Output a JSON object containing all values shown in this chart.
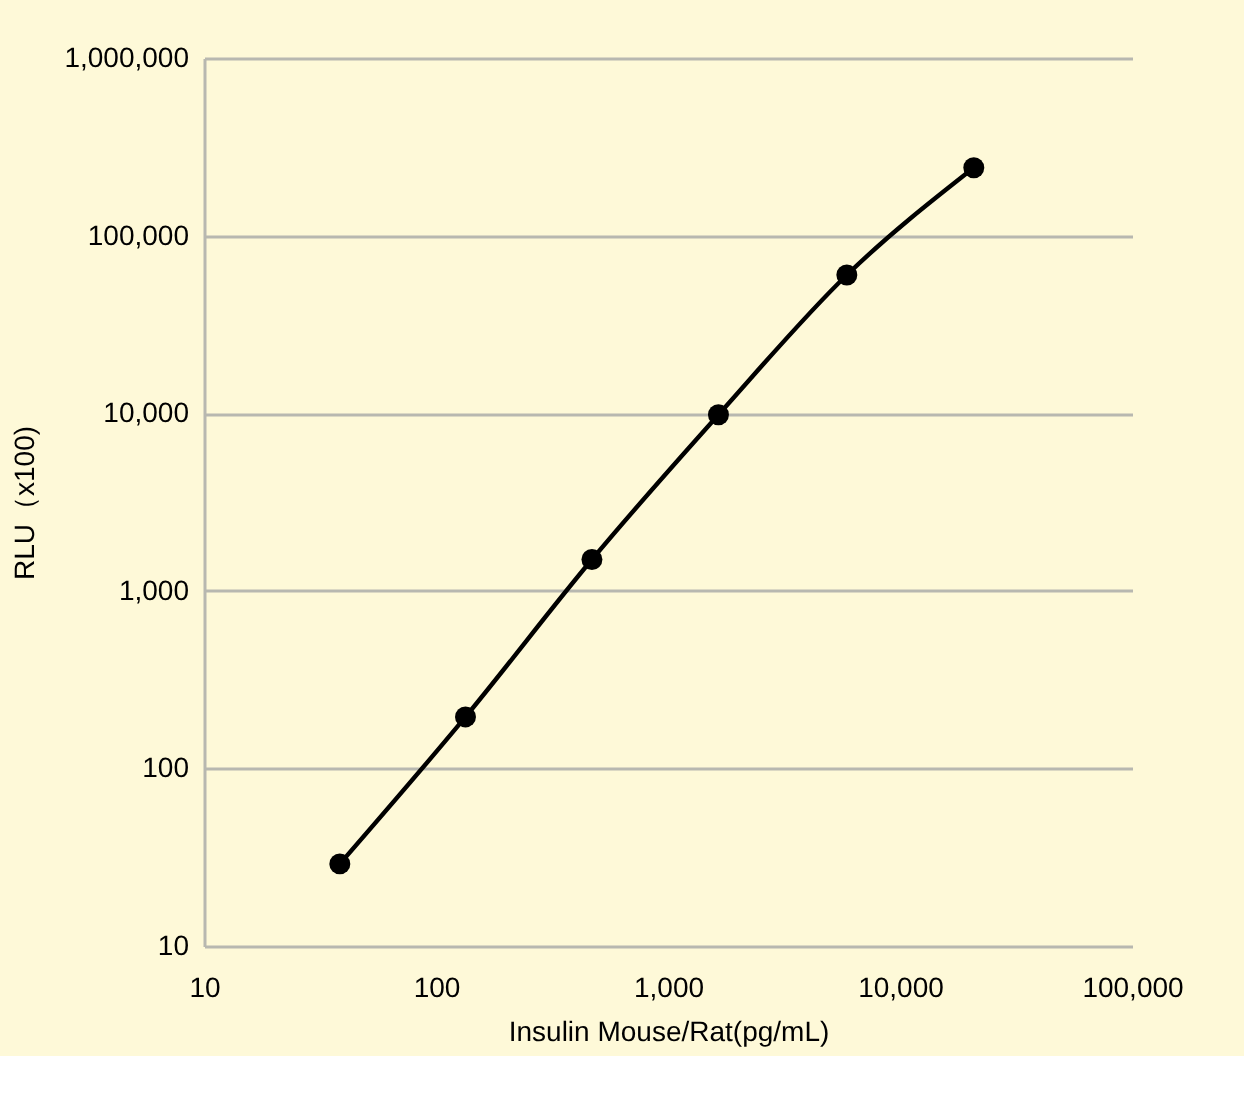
{
  "chart_data": {
    "type": "line",
    "xlabel": "Insulin Mouse/Rat(pg/mL)",
    "ylabel": "RLU（x100)",
    "x": [
      38.5,
      134,
      470,
      1650,
      5900,
      20800
    ],
    "series": [
      {
        "color": "#000000",
        "values": [
          29,
          195,
          1500,
          9800,
          60000,
          241000
        ]
      }
    ],
    "log": "xy",
    "xlim": [
      10,
      100000
    ],
    "ylim": [
      10,
      1000000
    ],
    "xticks": [
      {
        "value": 10,
        "label": "10"
      },
      {
        "value": 100,
        "label": "100"
      },
      {
        "value": 1000,
        "label": "1,000"
      },
      {
        "value": 10000,
        "label": "10,000"
      },
      {
        "value": 100000,
        "label": "100,000"
      }
    ],
    "yticks": [
      {
        "value": 10,
        "label": "10"
      },
      {
        "value": 100,
        "label": "100"
      },
      {
        "value": 1000,
        "label": "1,000"
      },
      {
        "value": 10000,
        "label": "10,000"
      },
      {
        "value": 100000,
        "label": "100,000"
      },
      {
        "value": 1000000,
        "label": "1,000,000"
      }
    ],
    "grid": "y",
    "marker": "circle",
    "line_style": "solid"
  }
}
